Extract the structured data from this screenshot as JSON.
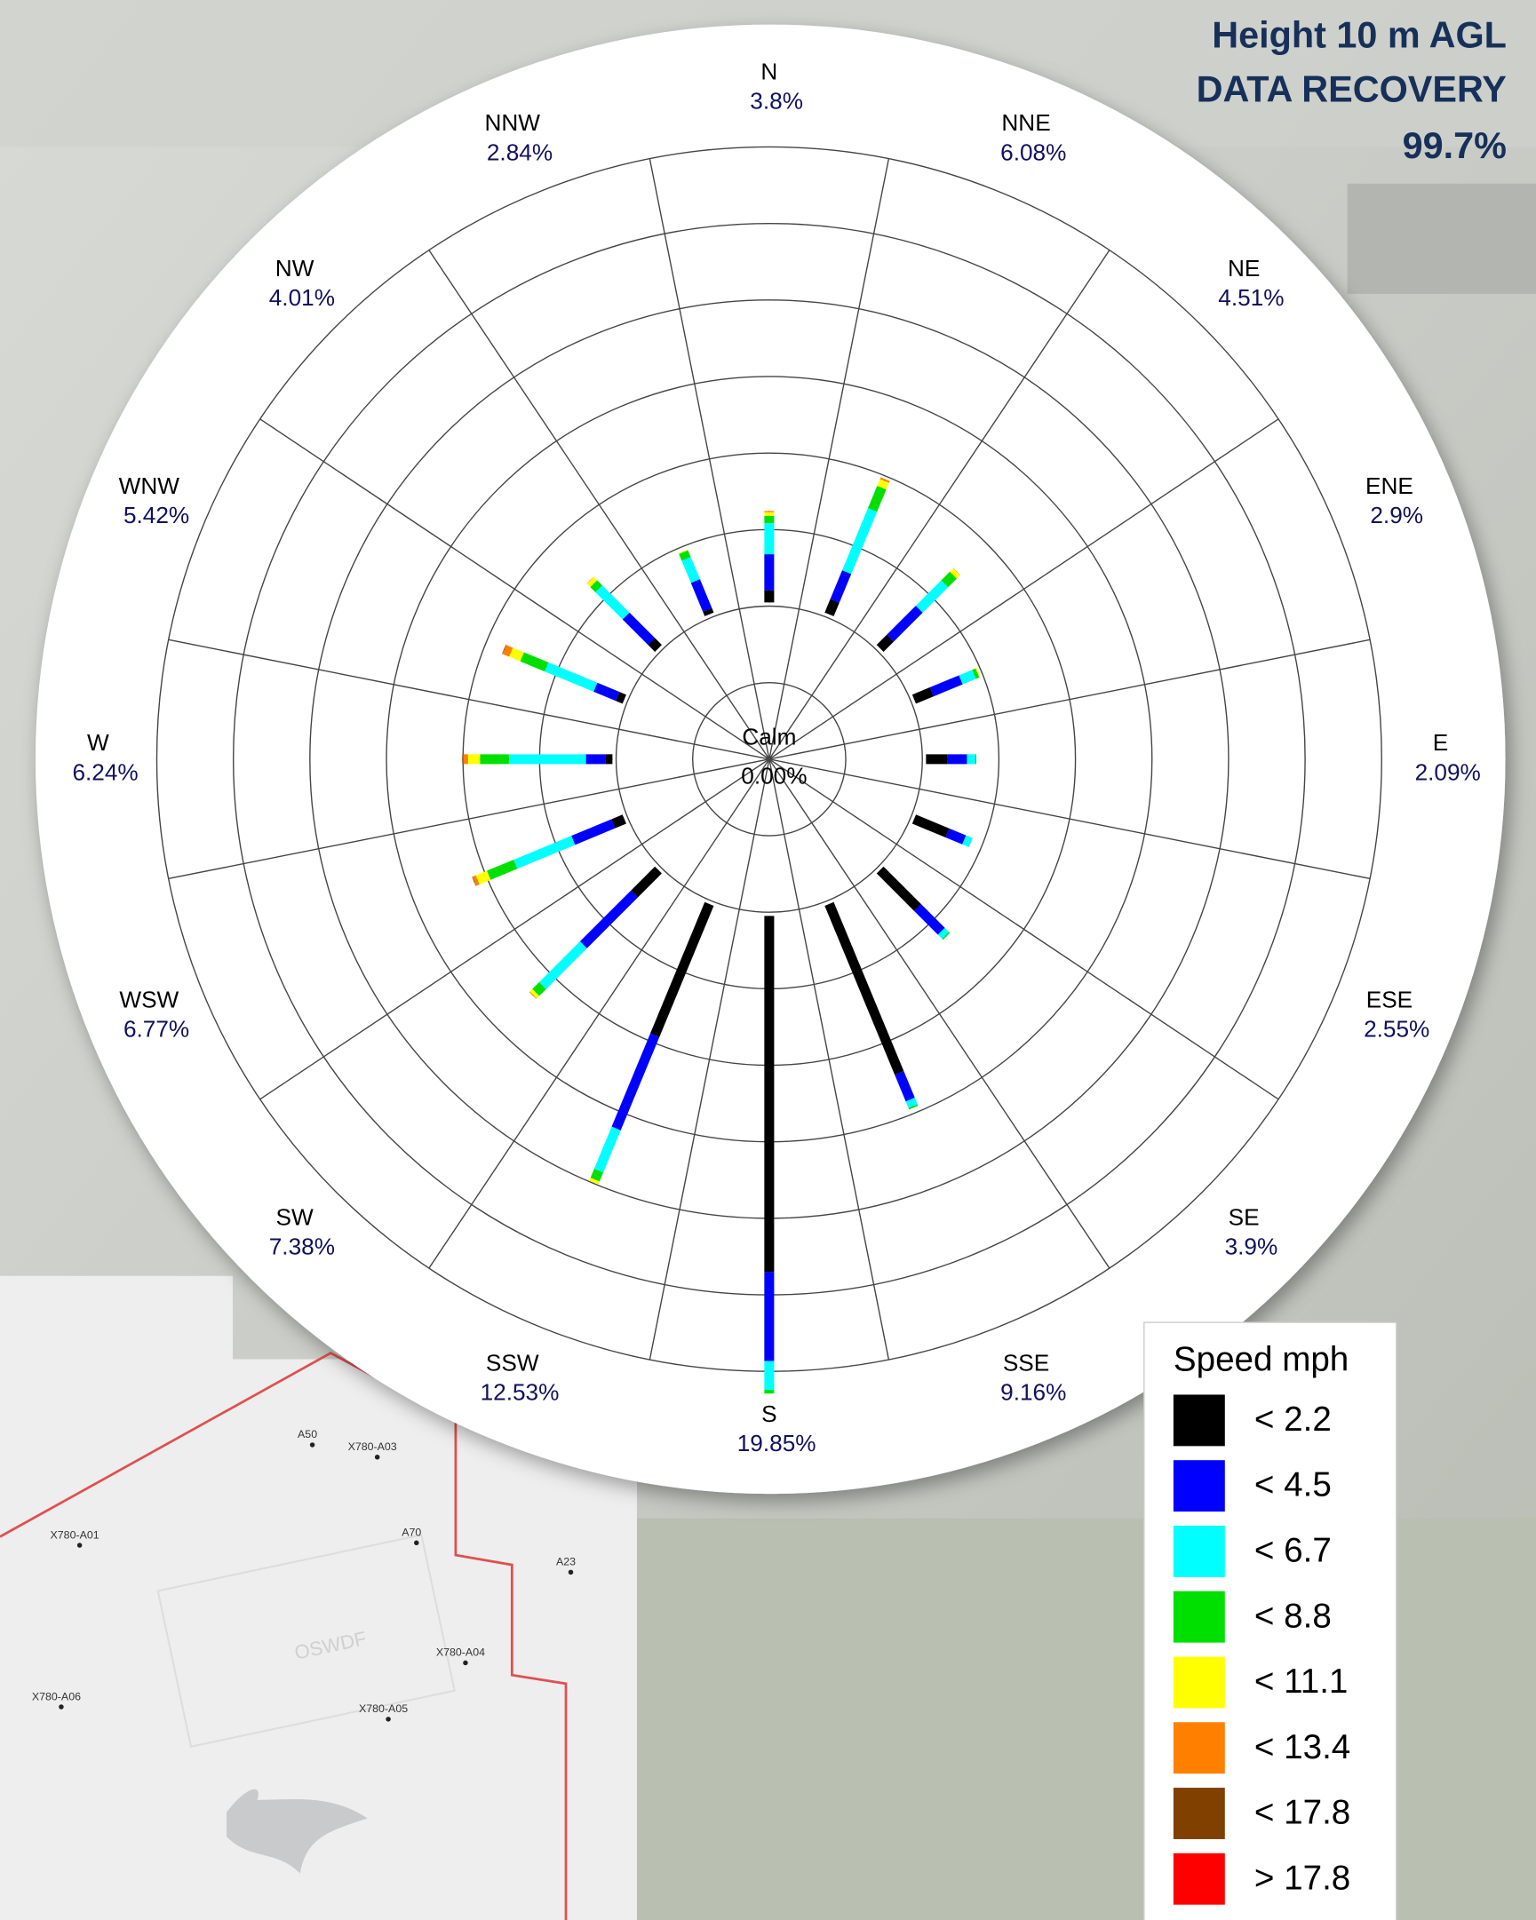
{
  "header": {
    "height": "Height 10 m AGL",
    "recovery_label": "DATA RECOVERY",
    "recovery": "99.7%"
  },
  "chart_data": {
    "type": "windrose",
    "directions": [
      "N",
      "NNE",
      "NE",
      "ENE",
      "E",
      "ESE",
      "SE",
      "SSE",
      "S",
      "SSW",
      "SW",
      "WSW",
      "W",
      "WNW",
      "NW",
      "NNW"
    ],
    "totals": [
      3.8,
      6.08,
      4.51,
      2.9,
      2.09,
      2.55,
      3.9,
      9.16,
      19.85,
      12.53,
      7.38,
      6.77,
      6.24,
      5.42,
      4.01,
      2.84
    ],
    "value_labels": [
      "3.8%",
      "6.08%",
      "4.51%",
      "2.9%",
      "2.09%",
      "2.55%",
      "3.9%",
      "9.16%",
      "19.85%",
      "12.53%",
      "7.38%",
      "6.77%",
      "6.24%",
      "5.42%",
      "4.01%",
      "2.84%"
    ],
    "calm_title": "Calm",
    "calm": 0,
    "calm_label": "0.00%",
    "rlim": [
      0,
      20
    ],
    "legend_title": "Speed mph",
    "series": [
      {
        "name": "< 2.2",
        "color": "#000000",
        "values": [
          0.5,
          0.6,
          0.6,
          0.8,
          0.9,
          1.5,
          2.2,
          7.6,
          14.8,
          5.9,
          1.4,
          0.5,
          0.3,
          0.3,
          0.4,
          0.2
        ]
      },
      {
        "name": "< 4.5",
        "color": "#0000ff",
        "values": [
          1.5,
          1.3,
          1.7,
          1.3,
          0.8,
          0.75,
          1.4,
          1.2,
          3.7,
          4.2,
          3.0,
          1.8,
          0.8,
          1.0,
          1.5,
          1.3
        ]
      },
      {
        "name": "< 6.7",
        "color": "#00ffff",
        "values": [
          1.3,
          2.8,
          1.5,
          0.6,
          0.35,
          0.3,
          0.25,
          0.3,
          1.2,
          1.9,
          2.4,
          2.6,
          3.2,
          2.2,
          1.6,
          1.0
        ]
      },
      {
        "name": "< 8.8",
        "color": "#00e000",
        "values": [
          0.3,
          1.0,
          0.5,
          0.15,
          0.04,
          0,
          0.05,
          0.06,
          0.15,
          0.4,
          0.4,
          1.2,
          1.2,
          1.1,
          0.3,
          0.3
        ]
      },
      {
        "name": "< 11.1",
        "color": "#ffff00",
        "values": [
          0.15,
          0.3,
          0.2,
          0.05,
          0,
          0,
          0,
          0,
          0,
          0.13,
          0.15,
          0.5,
          0.5,
          0.5,
          0.2,
          0.04
        ]
      },
      {
        "name": "< 13.4",
        "color": "#ff8000",
        "values": [
          0.05,
          0.08,
          0.01,
          0,
          0,
          0,
          0,
          0,
          0,
          0,
          0.03,
          0.15,
          0.2,
          0.3,
          0.01,
          0
        ]
      },
      {
        "name": "< 17.8",
        "color": "#804000",
        "values": [
          0,
          0,
          0,
          0,
          0,
          0,
          0,
          0,
          0,
          0,
          0,
          0.02,
          0.04,
          0.02,
          0,
          0
        ]
      },
      {
        "name": "> 17.8",
        "color": "#ff0000",
        "values": [
          0,
          0,
          0,
          0,
          0,
          0,
          0,
          0,
          0,
          0,
          0,
          0,
          0,
          0,
          0,
          0
        ]
      }
    ]
  },
  "map": {
    "watermark": "OSWDF",
    "labels": [
      "A50",
      "X780-A03",
      "X780-A01",
      "A70",
      "A23",
      "X780-A04",
      "X780-A06",
      "X780-A05"
    ]
  }
}
